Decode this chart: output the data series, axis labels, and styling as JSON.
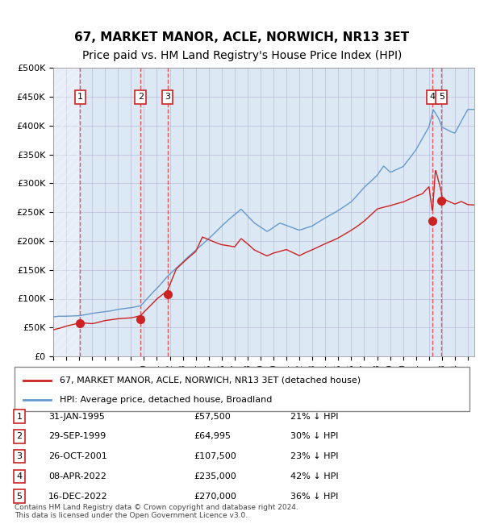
{
  "title": "67, MARKET MANOR, ACLE, NORWICH, NR13 3ET",
  "subtitle": "Price paid vs. HM Land Registry's House Price Index (HPI)",
  "legend_line1": "67, MARKET MANOR, ACLE, NORWICH, NR13 3ET (detached house)",
  "legend_line2": "HPI: Average price, detached house, Broadland",
  "footer1": "Contains HM Land Registry data © Crown copyright and database right 2024.",
  "footer2": "This data is licensed under the Open Government Licence v3.0.",
  "transactions": [
    {
      "num": 1,
      "date": "1995-01-31",
      "price": 57500,
      "pct": "21% ↓ HPI"
    },
    {
      "num": 2,
      "date": "1999-09-29",
      "price": 64995,
      "pct": "30% ↓ HPI"
    },
    {
      "num": 3,
      "date": "2001-10-26",
      "price": 107500,
      "pct": "23% ↓ HPI"
    },
    {
      "num": 4,
      "date": "2022-04-08",
      "price": 235000,
      "pct": "42% ↓ HPI"
    },
    {
      "num": 5,
      "date": "2022-12-16",
      "price": 270000,
      "pct": "36% ↓ HPI"
    }
  ],
  "transaction_display": [
    {
      "num": 1,
      "date_str": "31-JAN-1995",
      "price_str": "£57,500"
    },
    {
      "num": 2,
      "date_str": "29-SEP-1999",
      "price_str": "£64,995"
    },
    {
      "num": 3,
      "date_str": "26-OCT-2001",
      "price_str": "£107,500"
    },
    {
      "num": 4,
      "date_str": "08-APR-2022",
      "price_str": "£235,000"
    },
    {
      "num": 5,
      "date_str": "16-DEC-2022",
      "price_str": "£270,000"
    }
  ],
  "ylim": [
    0,
    500000
  ],
  "yticks": [
    0,
    50000,
    100000,
    150000,
    200000,
    250000,
    300000,
    350000,
    400000,
    450000,
    500000
  ],
  "ytick_labels": [
    "£0",
    "£50K",
    "£100K",
    "£150K",
    "£200K",
    "£250K",
    "£300K",
    "£350K",
    "£400K",
    "£450K",
    "£500K"
  ],
  "hpi_color": "#6699cc",
  "price_color": "#cc2222",
  "marker_color": "#cc2222",
  "grid_color": "#aaaacc",
  "bg_color": "#dde8f5",
  "hatch_color": "#c0cce0",
  "vline_color": "#dd3333",
  "box_color": "#cc2222",
  "title_fontsize": 11,
  "subtitle_fontsize": 10,
  "axis_fontsize": 9
}
